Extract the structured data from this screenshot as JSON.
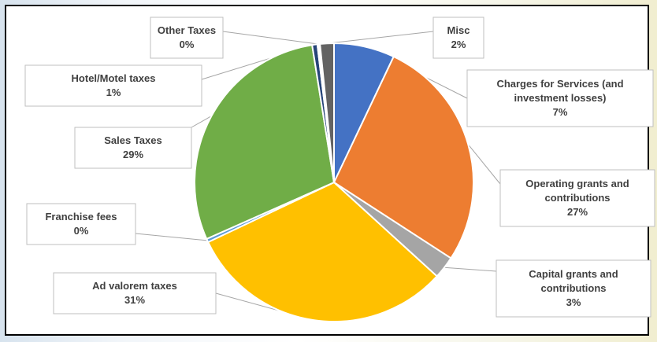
{
  "chart_data": {
    "type": "pie",
    "slices": [
      {
        "label": "Charges for Services (and investment losses)",
        "label_lines": [
          "Charges for Services (and",
          "investment losses)"
        ],
        "value": 7,
        "display": "7%",
        "color": "#4472c4"
      },
      {
        "label": "Operating grants and contributions",
        "label_lines": [
          "Operating grants and",
          "contributions"
        ],
        "value": 27,
        "display": "27%",
        "color": "#ed7d31"
      },
      {
        "label": "Capital grants and contributions",
        "label_lines": [
          "Capital grants and",
          "contributions"
        ],
        "value": 2.6,
        "display": "3%",
        "color": "#a5a5a5"
      },
      {
        "label": "Ad valorem taxes",
        "label_lines": [
          "Ad valorem taxes"
        ],
        "value": 31,
        "display": "31%",
        "color": "#ffc000"
      },
      {
        "label": "Franchise fees",
        "label_lines": [
          "Franchise fees"
        ],
        "value": 0.4,
        "display": "0%",
        "color": "#5b9bd5"
      },
      {
        "label": "Sales Taxes",
        "label_lines": [
          "Sales Taxes"
        ],
        "value": 29,
        "display": "29%",
        "color": "#70ad47"
      },
      {
        "label": "Hotel/Motel taxes",
        "label_lines": [
          "Hotel/Motel taxes"
        ],
        "value": 0.6,
        "display": "1%",
        "color": "#264478"
      },
      {
        "label": "Other Taxes",
        "label_lines": [
          "Other Taxes"
        ],
        "value": 0.3,
        "display": "0%",
        "color": "#ffffff"
      },
      {
        "label": "Misc",
        "label_lines": [
          "Misc"
        ],
        "value": 1.6,
        "display": "2%",
        "color": "#636363"
      }
    ],
    "start_angle_deg": 0,
    "direction": "clockwise",
    "title": "",
    "legend": "none",
    "data_labels": "callouts with leader lines"
  }
}
